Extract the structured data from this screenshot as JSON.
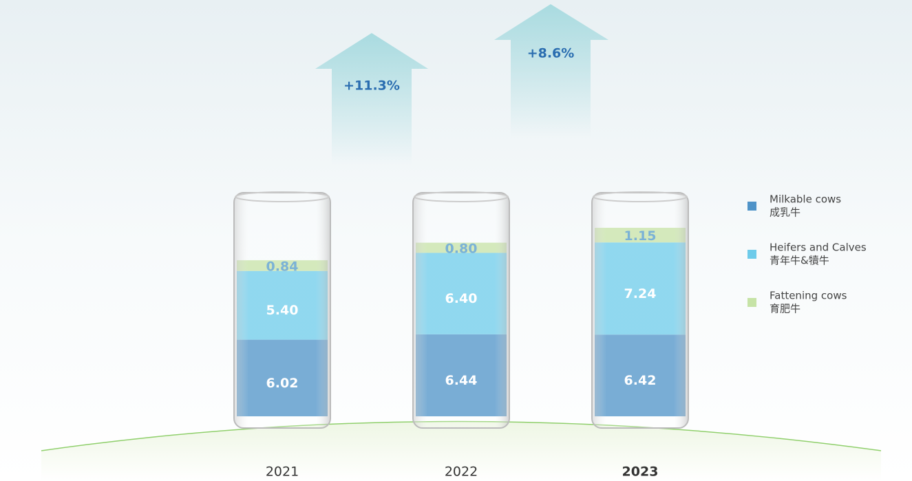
{
  "chart_data": {
    "type": "stacked-glass",
    "categories": [
      "2021",
      "2022",
      "2023"
    ],
    "highlight_index": 2,
    "series": [
      {
        "name": "Milkable cows",
        "name_zh": "成乳牛",
        "color": "#4f93c8",
        "values": [
          6.02,
          6.44,
          6.42
        ],
        "value_labels": [
          "6.02",
          "6.44",
          "6.42"
        ]
      },
      {
        "name": "Heifers and Calves",
        "name_zh": "青年牛&犢牛",
        "color": "#6ecbea",
        "values": [
          5.4,
          6.4,
          7.24
        ],
        "value_labels": [
          "5.40",
          "6.40",
          "7.24"
        ]
      },
      {
        "name": "Fattening cows",
        "name_zh": "育肥牛",
        "color": "#c6e3a6",
        "values": [
          0.84,
          0.8,
          1.15
        ],
        "value_labels": [
          "0.84",
          "0.80",
          "1.15"
        ]
      }
    ],
    "annotations": [
      "+11.3%",
      "+8.6%"
    ]
  }
}
